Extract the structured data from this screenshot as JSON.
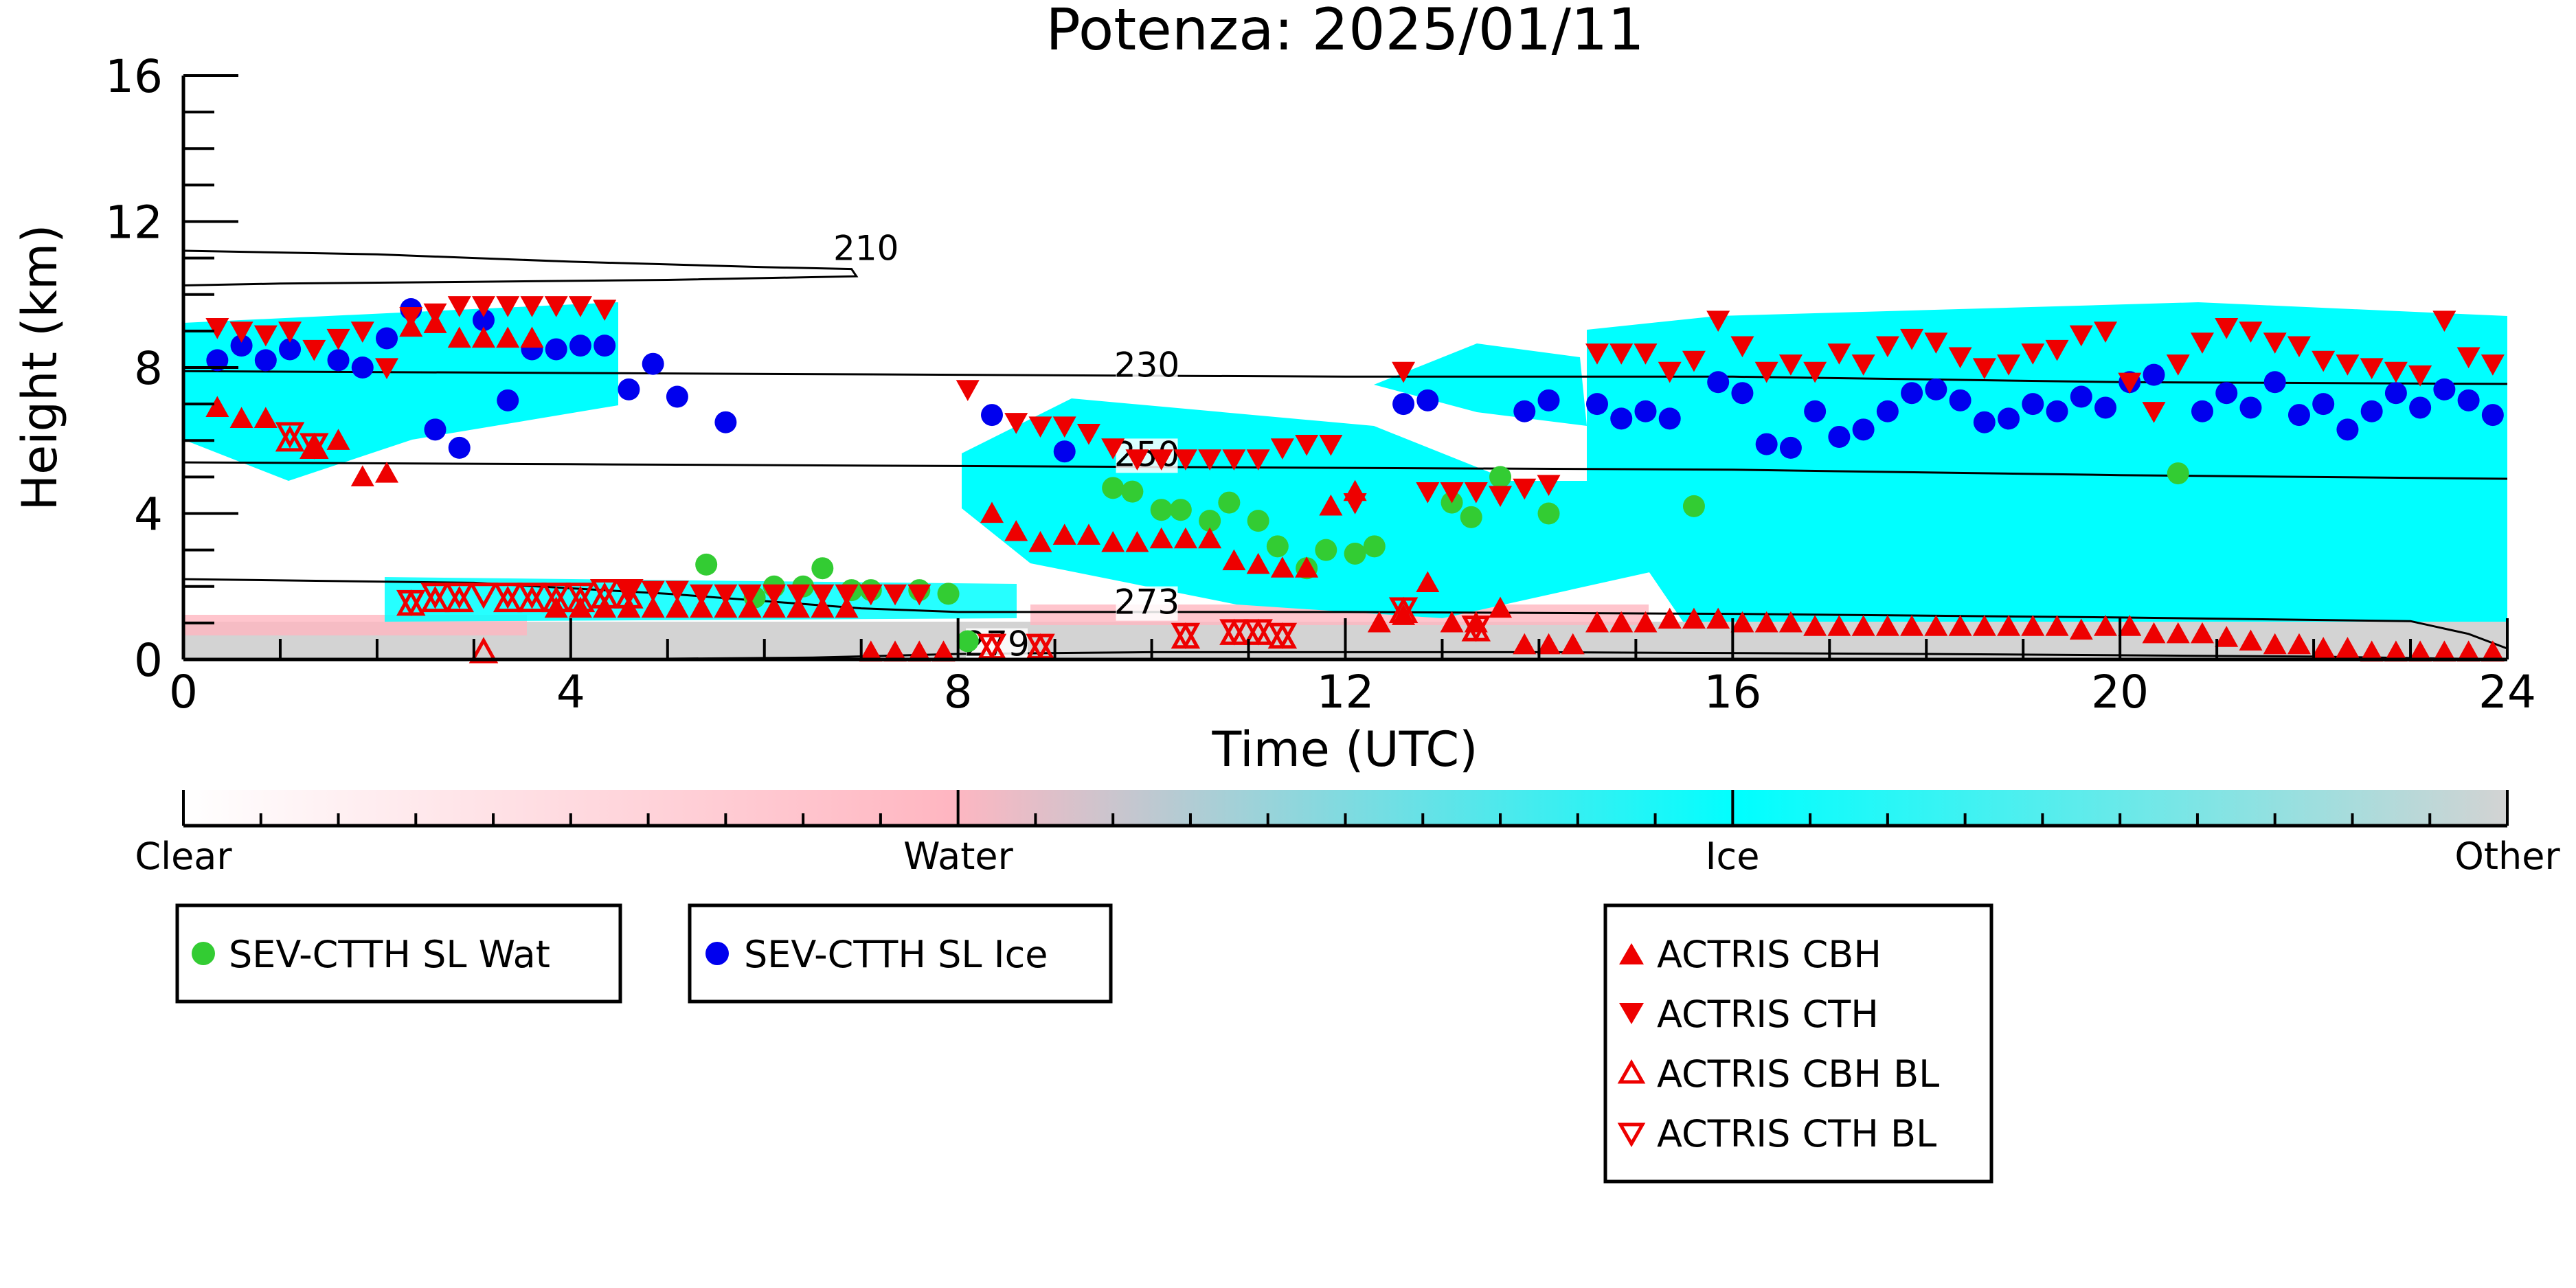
{
  "chart_data": {
    "type": "scatter",
    "title": "Potenza: 2025/01/11",
    "xlabel": "Time (UTC)",
    "ylabel": "Height (km)",
    "xlim": [
      0,
      24
    ],
    "ylim": [
      0,
      16
    ],
    "xticks": [
      0,
      4,
      8,
      12,
      16,
      20,
      24
    ],
    "yticks": [
      0,
      4,
      8,
      12,
      16
    ],
    "grid": false,
    "colorbar": {
      "labels": [
        "Clear",
        "Water",
        "Ice",
        "Other"
      ],
      "colors": [
        "#ffffff",
        "#ffb6c1",
        "#00ffff",
        "#d3d3d3"
      ]
    },
    "legends": [
      {
        "position": "bottom-left",
        "entries": [
          {
            "label": "SEV-CTTH SL Wat",
            "marker": "circle",
            "color": "#33cc33"
          }
        ]
      },
      {
        "position": "bottom-left",
        "entries": [
          {
            "label": "SEV-CTTH SL Ice",
            "marker": "circle",
            "color": "#0000ee"
          }
        ]
      },
      {
        "position": "bottom-center",
        "entries": [
          {
            "label": "ACTRIS CBH",
            "marker": "triangle-up",
            "color": "#ee0000"
          },
          {
            "label": "ACTRIS CTH",
            "marker": "triangle-down",
            "color": "#ee0000"
          },
          {
            "label": "ACTRIS CBH BL",
            "marker": "triangle-up-open",
            "color": "#ee0000"
          },
          {
            "label": "ACTRIS CTH BL",
            "marker": "triangle-down-open",
            "color": "#ee0000"
          }
        ]
      }
    ],
    "contours": [
      {
        "label": "210",
        "points": [
          [
            0,
            11.2
          ],
          [
            2,
            11.1
          ],
          [
            4,
            10.9
          ],
          [
            6,
            10.75
          ],
          [
            6.9,
            10.7
          ],
          [
            6.95,
            10.5
          ],
          [
            5,
            10.4
          ],
          [
            3,
            10.35
          ],
          [
            1,
            10.3
          ],
          [
            0,
            10.25
          ]
        ]
      },
      {
        "label": "230",
        "points": [
          [
            0,
            7.9
          ],
          [
            4,
            7.85
          ],
          [
            8,
            7.8
          ],
          [
            12,
            7.75
          ],
          [
            16,
            7.75
          ],
          [
            20,
            7.6
          ],
          [
            24,
            7.55
          ]
        ]
      },
      {
        "label": "250",
        "points": [
          [
            0,
            5.4
          ],
          [
            4,
            5.35
          ],
          [
            8,
            5.3
          ],
          [
            12,
            5.25
          ],
          [
            16,
            5.2
          ],
          [
            20,
            5.05
          ],
          [
            24,
            4.95
          ]
        ]
      },
      {
        "label": "273",
        "points": [
          [
            0,
            2.2
          ],
          [
            3,
            2.1
          ],
          [
            5,
            1.8
          ],
          [
            7,
            1.4
          ],
          [
            8,
            1.3
          ],
          [
            12,
            1.3
          ],
          [
            16,
            1.25
          ],
          [
            20,
            1.15
          ],
          [
            23,
            1.05
          ],
          [
            23.6,
            0.7
          ],
          [
            24,
            0.3
          ]
        ]
      },
      {
        "label": "279",
        "points": [
          [
            5,
            0.02
          ],
          [
            6.5,
            0.05
          ],
          [
            8,
            0.15
          ],
          [
            10,
            0.2
          ],
          [
            14,
            0.2
          ],
          [
            18,
            0.15
          ],
          [
            22,
            0.08
          ],
          [
            24,
            0.0
          ]
        ]
      }
    ],
    "series": [
      {
        "name": "SEV-CTTH SL Wat",
        "marker": "circle",
        "color": "#33cc33",
        "x": [
          5.4,
          5.9,
          6.1,
          6.4,
          6.6,
          6.9,
          7.1,
          7.6,
          7.9,
          8.1,
          9.6,
          9.8,
          10.1,
          10.3,
          10.6,
          10.8,
          11.1,
          11.3,
          11.6,
          11.8,
          12.1,
          12.3,
          13.1,
          13.3,
          13.6,
          14.1,
          15.6,
          20.6
        ],
        "y": [
          2.6,
          1.7,
          2.0,
          2.0,
          2.5,
          1.9,
          1.9,
          1.9,
          1.8,
          0.5,
          4.7,
          4.6,
          4.1,
          4.1,
          3.8,
          4.3,
          3.8,
          3.1,
          2.5,
          3.0,
          2.9,
          3.1,
          4.3,
          3.9,
          5.0,
          4.0,
          4.2,
          5.1
        ]
      },
      {
        "name": "SEV-CTTH SL Ice",
        "marker": "circle",
        "color": "#0000ee",
        "x": [
          0.35,
          0.6,
          0.85,
          1.1,
          1.6,
          1.85,
          2.1,
          2.35,
          2.6,
          2.85,
          3.1,
          3.35,
          3.6,
          3.85,
          4.1,
          4.35,
          4.6,
          4.85,
          5.1,
          5.6,
          8.35,
          9.1,
          12.6,
          12.85,
          13.85,
          14.1,
          14.6,
          14.85,
          15.1,
          15.35,
          15.85,
          16.1,
          16.35,
          16.6,
          16.85,
          17.1,
          17.35,
          17.6,
          17.85,
          18.1,
          18.35,
          18.6,
          18.85,
          19.1,
          19.35,
          19.6,
          19.85,
          20.1,
          20.35,
          20.85,
          21.1,
          21.35,
          21.6,
          21.85,
          22.1,
          22.35,
          22.6,
          22.85,
          23.1,
          23.35,
          23.6,
          23.85
        ],
        "y": [
          8.2,
          8.6,
          8.2,
          8.5,
          8.2,
          8.0,
          8.8,
          9.6,
          6.3,
          5.8,
          9.3,
          7.1,
          8.5,
          8.5,
          8.6,
          8.6,
          7.4,
          8.1,
          7.2,
          6.5,
          6.7,
          5.7,
          7.0,
          7.1,
          6.8,
          7.1,
          7.0,
          6.6,
          6.8,
          6.6,
          7.6,
          7.3,
          5.9,
          5.8,
          6.8,
          6.1,
          6.3,
          6.8,
          7.3,
          7.4,
          7.1,
          6.5,
          6.6,
          7.0,
          6.8,
          7.2,
          6.9,
          7.6,
          7.8,
          6.8,
          7.3,
          6.9,
          7.6,
          6.7,
          7.0,
          6.3,
          6.8,
          7.3,
          6.9,
          7.4,
          7.1,
          6.7
        ]
      },
      {
        "name": "ACTRIS CBH",
        "marker": "triangle-up",
        "color": "#ee0000",
        "x": [
          0.35,
          0.6,
          0.85,
          1.35,
          1.6,
          1.85,
          2.1,
          2.35,
          2.6,
          2.85,
          3.1,
          3.35,
          3.6,
          3.85,
          4.1,
          4.35,
          4.6,
          4.85,
          5.1,
          5.35,
          5.6,
          5.85,
          6.1,
          6.35,
          6.6,
          6.85,
          7.1,
          7.35,
          7.6,
          7.85,
          8.35,
          8.6,
          8.85,
          9.1,
          9.35,
          9.6,
          9.85,
          10.1,
          10.35,
          10.6,
          10.85,
          11.1,
          11.35,
          11.6,
          11.85,
          12.1,
          12.35,
          12.6,
          12.85,
          13.1,
          13.35,
          13.6,
          13.85,
          14.1,
          14.35,
          14.6,
          14.85,
          15.1,
          15.35,
          15.6,
          15.85,
          16.1,
          16.35,
          16.6,
          16.85,
          17.1,
          17.35,
          17.6,
          17.85,
          18.1,
          18.35,
          18.6,
          18.85,
          19.1,
          19.35,
          19.6,
          19.85,
          20.1,
          20.35,
          20.6,
          20.85,
          21.1,
          21.35,
          21.6,
          21.85,
          22.1,
          22.35,
          22.6,
          22.85,
          23.1,
          23.35,
          23.6,
          23.85
        ],
        "y": [
          6.9,
          6.6,
          6.6,
          5.8,
          6.0,
          5.0,
          5.1,
          9.1,
          9.2,
          8.8,
          8.8,
          8.8,
          8.8,
          1.4,
          1.4,
          1.4,
          1.4,
          1.4,
          1.4,
          1.4,
          1.4,
          1.4,
          1.4,
          1.4,
          1.4,
          1.4,
          0.2,
          0.2,
          0.2,
          0.2,
          4.0,
          3.5,
          3.2,
          3.4,
          3.4,
          3.2,
          3.2,
          3.3,
          3.3,
          3.3,
          2.7,
          2.6,
          2.5,
          2.5,
          4.2,
          4.6,
          1.0,
          1.2,
          2.1,
          1.0,
          1.0,
          1.4,
          0.4,
          0.4,
          0.4,
          1.0,
          1.0,
          1.0,
          1.1,
          1.1,
          1.1,
          1.0,
          1.0,
          1.0,
          0.9,
          0.9,
          0.9,
          0.9,
          0.9,
          0.9,
          0.9,
          0.9,
          0.9,
          0.9,
          0.9,
          0.8,
          0.9,
          0.9,
          0.7,
          0.7,
          0.7,
          0.6,
          0.5,
          0.4,
          0.4,
          0.3,
          0.3,
          0.2,
          0.2,
          0.2,
          0.2,
          0.2,
          0.2
        ]
      },
      {
        "name": "ACTRIS CTH",
        "marker": "triangle-down",
        "color": "#ee0000",
        "x": [
          0.35,
          0.6,
          0.85,
          1.1,
          1.35,
          1.6,
          1.85,
          2.1,
          2.35,
          2.6,
          2.85,
          3.1,
          3.35,
          3.6,
          3.85,
          4.1,
          4.35,
          4.6,
          4.85,
          5.1,
          5.35,
          5.6,
          5.85,
          6.1,
          6.35,
          6.6,
          6.85,
          7.1,
          7.35,
          7.6,
          8.1,
          8.6,
          8.85,
          9.1,
          9.35,
          9.6,
          9.85,
          10.1,
          10.35,
          10.6,
          10.85,
          11.1,
          11.35,
          11.6,
          11.85,
          12.1,
          12.6,
          12.85,
          13.1,
          13.35,
          13.6,
          13.85,
          14.1,
          14.6,
          14.85,
          15.1,
          15.35,
          15.6,
          15.85,
          16.1,
          16.35,
          16.6,
          16.85,
          17.1,
          17.35,
          17.6,
          17.85,
          18.1,
          18.35,
          18.6,
          18.85,
          19.1,
          19.35,
          19.6,
          19.85,
          20.1,
          20.35,
          20.6,
          20.85,
          21.1,
          21.35,
          21.6,
          21.85,
          22.1,
          22.35,
          22.6,
          22.85,
          23.1,
          23.35,
          23.6,
          23.85
        ],
        "y": [
          9.1,
          9.0,
          8.9,
          9.0,
          8.5,
          8.8,
          9.0,
          8.0,
          9.4,
          9.5,
          9.7,
          9.7,
          9.7,
          9.7,
          9.7,
          9.7,
          9.6,
          1.9,
          1.9,
          1.9,
          1.8,
          1.8,
          1.8,
          1.8,
          1.8,
          1.8,
          1.8,
          1.8,
          1.8,
          1.8,
          7.4,
          6.5,
          6.4,
          6.4,
          6.2,
          5.8,
          5.5,
          5.5,
          5.5,
          5.5,
          5.5,
          5.5,
          5.8,
          5.9,
          5.9,
          4.3,
          7.9,
          4.6,
          4.6,
          4.6,
          4.5,
          4.7,
          4.8,
          8.4,
          8.4,
          8.4,
          7.9,
          8.2,
          9.3,
          8.6,
          7.9,
          8.1,
          7.9,
          8.4,
          8.1,
          8.6,
          8.8,
          8.7,
          8.3,
          8.0,
          8.1,
          8.4,
          8.5,
          8.9,
          9.0,
          7.6,
          6.8,
          8.1,
          8.7,
          9.1,
          9.0,
          8.7,
          8.6,
          8.2,
          8.1,
          8.0,
          7.9,
          7.8,
          9.3,
          8.3,
          8.1
        ]
      },
      {
        "name": "ACTRIS CBH BL",
        "marker": "triangle-up-open",
        "color": "#ee0000",
        "x": [
          1.1,
          1.35,
          2.35,
          2.6,
          2.85,
          3.1,
          3.35,
          3.6,
          3.85,
          4.1,
          4.35,
          4.6,
          8.35,
          8.85,
          10.35,
          10.85,
          11.1,
          11.35,
          12.6,
          13.35
        ],
        "y": [
          6.0,
          5.8,
          1.5,
          1.6,
          1.6,
          0.2,
          1.6,
          1.6,
          1.6,
          1.6,
          1.7,
          1.7,
          0.3,
          0.3,
          0.6,
          0.7,
          0.7,
          0.6,
          1.3,
          0.8
        ]
      },
      {
        "name": "ACTRIS CTH BL",
        "marker": "triangle-down-open",
        "color": "#ee0000",
        "x": [
          1.1,
          1.35,
          2.35,
          2.6,
          2.85,
          3.1,
          3.35,
          3.6,
          3.85,
          4.1,
          4.35,
          4.6,
          8.35,
          8.85,
          10.35,
          10.85,
          11.1,
          11.35,
          12.6,
          13.35
        ],
        "y": [
          6.2,
          5.9,
          1.6,
          1.8,
          1.8,
          1.8,
          1.8,
          1.8,
          1.8,
          1.8,
          1.9,
          1.9,
          0.4,
          0.4,
          0.7,
          0.8,
          0.8,
          0.7,
          1.4,
          0.9
        ]
      }
    ]
  }
}
